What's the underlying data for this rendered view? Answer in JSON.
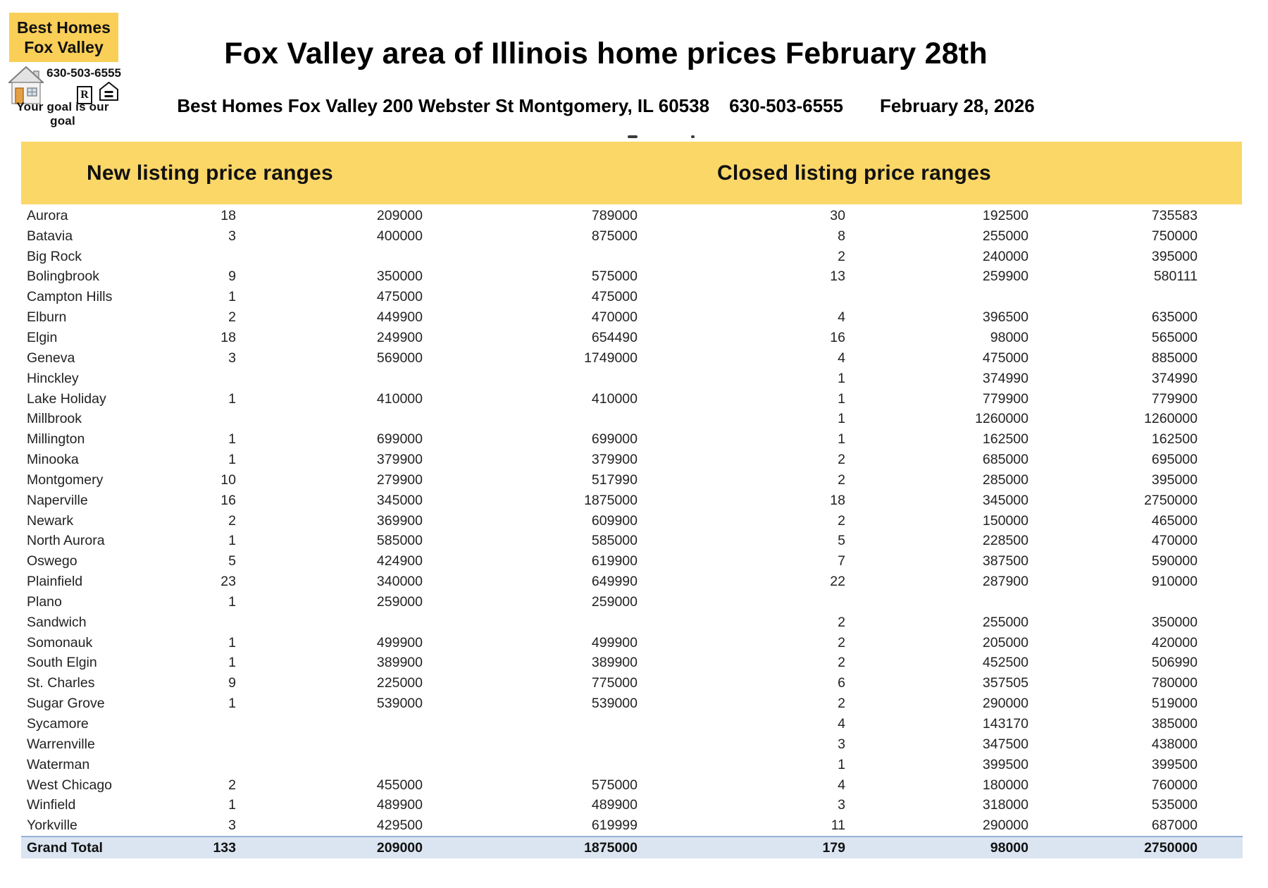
{
  "logo": {
    "name_line1": "Best Homes",
    "name_line2": "Fox Valley",
    "phone": "630-503-6555",
    "realtor_r": "R",
    "tagline": "Your goal is our goal"
  },
  "header": {
    "title": "Fox Valley area of Illinois home prices February 28th",
    "address": "Best Homes Fox Valley 200 Webster St Montgomery, IL 60538",
    "phone": "630-503-6555",
    "date": "February 28, 2026"
  },
  "band": {
    "new_header": "New listing price ranges",
    "closed_header": "Closed listing price ranges"
  },
  "colors": {
    "logo_yellow": "#f9cf57",
    "band_yellow": "#fbd768",
    "total_row_bg": "#dbe5f1",
    "total_row_border": "#95b3d7"
  },
  "table": {
    "fields": [
      "city",
      "new_count",
      "new_min",
      "new_max",
      "closed_count",
      "closed_min",
      "closed_max"
    ],
    "rows": [
      {
        "city": "Aurora",
        "new_count": "18",
        "new_min": "209000",
        "new_max": "789000",
        "closed_count": "30",
        "closed_min": "192500",
        "closed_max": "735583"
      },
      {
        "city": "Batavia",
        "new_count": "3",
        "new_min": "400000",
        "new_max": "875000",
        "closed_count": "8",
        "closed_min": "255000",
        "closed_max": "750000"
      },
      {
        "city": "Big Rock",
        "new_count": "",
        "new_min": "",
        "new_max": "",
        "closed_count": "2",
        "closed_min": "240000",
        "closed_max": "395000"
      },
      {
        "city": "Bolingbrook",
        "new_count": "9",
        "new_min": "350000",
        "new_max": "575000",
        "closed_count": "13",
        "closed_min": "259900",
        "closed_max": "580111"
      },
      {
        "city": "Campton Hills",
        "new_count": "1",
        "new_min": "475000",
        "new_max": "475000",
        "closed_count": "",
        "closed_min": "",
        "closed_max": ""
      },
      {
        "city": "Elburn",
        "new_count": "2",
        "new_min": "449900",
        "new_max": "470000",
        "closed_count": "4",
        "closed_min": "396500",
        "closed_max": "635000"
      },
      {
        "city": "Elgin",
        "new_count": "18",
        "new_min": "249900",
        "new_max": "654490",
        "closed_count": "16",
        "closed_min": "98000",
        "closed_max": "565000"
      },
      {
        "city": "Geneva",
        "new_count": "3",
        "new_min": "569000",
        "new_max": "1749000",
        "closed_count": "4",
        "closed_min": "475000",
        "closed_max": "885000"
      },
      {
        "city": "Hinckley",
        "new_count": "",
        "new_min": "",
        "new_max": "",
        "closed_count": "1",
        "closed_min": "374990",
        "closed_max": "374990"
      },
      {
        "city": "Lake Holiday",
        "new_count": "1",
        "new_min": "410000",
        "new_max": "410000",
        "closed_count": "1",
        "closed_min": "779900",
        "closed_max": "779900"
      },
      {
        "city": "Millbrook",
        "new_count": "",
        "new_min": "",
        "new_max": "",
        "closed_count": "1",
        "closed_min": "1260000",
        "closed_max": "1260000"
      },
      {
        "city": "Millington",
        "new_count": "1",
        "new_min": "699000",
        "new_max": "699000",
        "closed_count": "1",
        "closed_min": "162500",
        "closed_max": "162500"
      },
      {
        "city": "Minooka",
        "new_count": "1",
        "new_min": "379900",
        "new_max": "379900",
        "closed_count": "2",
        "closed_min": "685000",
        "closed_max": "695000"
      },
      {
        "city": "Montgomery",
        "new_count": "10",
        "new_min": "279900",
        "new_max": "517990",
        "closed_count": "2",
        "closed_min": "285000",
        "closed_max": "395000"
      },
      {
        "city": "Naperville",
        "new_count": "16",
        "new_min": "345000",
        "new_max": "1875000",
        "closed_count": "18",
        "closed_min": "345000",
        "closed_max": "2750000"
      },
      {
        "city": "Newark",
        "new_count": "2",
        "new_min": "369900",
        "new_max": "609900",
        "closed_count": "2",
        "closed_min": "150000",
        "closed_max": "465000"
      },
      {
        "city": "North Aurora",
        "new_count": "1",
        "new_min": "585000",
        "new_max": "585000",
        "closed_count": "5",
        "closed_min": "228500",
        "closed_max": "470000"
      },
      {
        "city": "Oswego",
        "new_count": "5",
        "new_min": "424900",
        "new_max": "619900",
        "closed_count": "7",
        "closed_min": "387500",
        "closed_max": "590000"
      },
      {
        "city": "Plainfield",
        "new_count": "23",
        "new_min": "340000",
        "new_max": "649990",
        "closed_count": "22",
        "closed_min": "287900",
        "closed_max": "910000"
      },
      {
        "city": "Plano",
        "new_count": "1",
        "new_min": "259000",
        "new_max": "259000",
        "closed_count": "",
        "closed_min": "",
        "closed_max": ""
      },
      {
        "city": "Sandwich",
        "new_count": "",
        "new_min": "",
        "new_max": "",
        "closed_count": "2",
        "closed_min": "255000",
        "closed_max": "350000"
      },
      {
        "city": "Somonauk",
        "new_count": "1",
        "new_min": "499900",
        "new_max": "499900",
        "closed_count": "2",
        "closed_min": "205000",
        "closed_max": "420000"
      },
      {
        "city": "South Elgin",
        "new_count": "1",
        "new_min": "389900",
        "new_max": "389900",
        "closed_count": "2",
        "closed_min": "452500",
        "closed_max": "506990"
      },
      {
        "city": "St. Charles",
        "new_count": "9",
        "new_min": "225000",
        "new_max": "775000",
        "closed_count": "6",
        "closed_min": "357505",
        "closed_max": "780000"
      },
      {
        "city": "Sugar Grove",
        "new_count": "1",
        "new_min": "539000",
        "new_max": "539000",
        "closed_count": "2",
        "closed_min": "290000",
        "closed_max": "519000"
      },
      {
        "city": "Sycamore",
        "new_count": "",
        "new_min": "",
        "new_max": "",
        "closed_count": "4",
        "closed_min": "143170",
        "closed_max": "385000"
      },
      {
        "city": "Warrenville",
        "new_count": "",
        "new_min": "",
        "new_max": "",
        "closed_count": "3",
        "closed_min": "347500",
        "closed_max": "438000"
      },
      {
        "city": "Waterman",
        "new_count": "",
        "new_min": "",
        "new_max": "",
        "closed_count": "1",
        "closed_min": "399500",
        "closed_max": "399500"
      },
      {
        "city": "West Chicago",
        "new_count": "2",
        "new_min": "455000",
        "new_max": "575000",
        "closed_count": "4",
        "closed_min": "180000",
        "closed_max": "760000"
      },
      {
        "city": "Winfield",
        "new_count": "1",
        "new_min": "489900",
        "new_max": "489900",
        "closed_count": "3",
        "closed_min": "318000",
        "closed_max": "535000"
      },
      {
        "city": "Yorkville",
        "new_count": "3",
        "new_min": "429500",
        "new_max": "619999",
        "closed_count": "11",
        "closed_min": "290000",
        "closed_max": "687000"
      }
    ],
    "grand_total": {
      "city": "Grand Total",
      "new_count": "133",
      "new_min": "209000",
      "new_max": "1875000",
      "closed_count": "179",
      "closed_min": "98000",
      "closed_max": "2750000"
    }
  }
}
